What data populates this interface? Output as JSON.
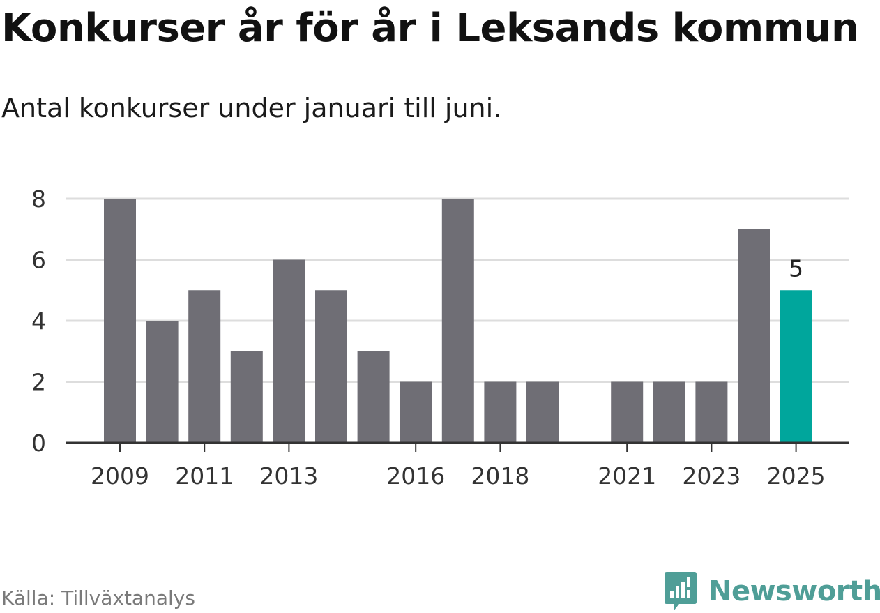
{
  "chart_data": {
    "type": "bar",
    "title": "Konkurser år för år i Leksands kommun",
    "subtitle": "Antal konkurser under januari till juni.",
    "x": [
      2009,
      2010,
      2011,
      2012,
      2013,
      2014,
      2015,
      2016,
      2017,
      2018,
      2019,
      2020,
      2021,
      2022,
      2023,
      2024,
      2025
    ],
    "values": [
      8,
      4,
      5,
      3,
      6,
      5,
      3,
      2,
      8,
      2,
      2,
      0,
      2,
      2,
      2,
      7,
      5
    ],
    "x_tick_labels": [
      "2009",
      "2011",
      "2013",
      "2016",
      "2018",
      "2021",
      "2023",
      "2025"
    ],
    "y_ticks": [
      0,
      2,
      4,
      6,
      8
    ],
    "ylim": [
      0,
      8
    ],
    "grid": true,
    "highlight": {
      "x": 2025,
      "label": "5"
    },
    "colors": {
      "bar": "#6f6e75",
      "highlight": "#00a69c",
      "grid": "#dddddd",
      "axis": "#333333"
    }
  },
  "source": "Källa: Tillväxtanalys",
  "brand": {
    "name": "Newsworthy",
    "icon": "newsworthy-logo-icon",
    "color": "#4f9e97"
  }
}
